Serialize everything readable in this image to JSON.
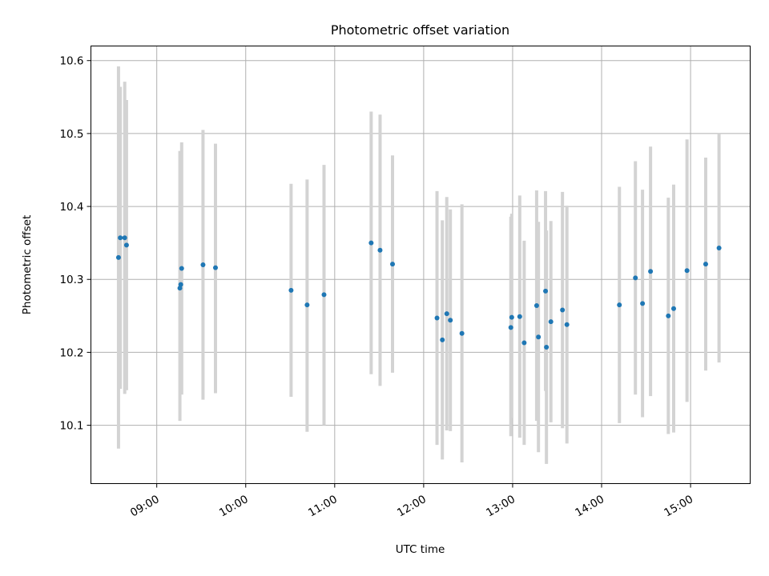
{
  "chart_data": {
    "type": "scatter",
    "title": "Photometric offset variation",
    "xlabel": "UTC time",
    "ylabel": "Photometric offset",
    "grid": true,
    "xlim_hours": [
      8.26,
      15.67
    ],
    "ylim": [
      10.02,
      10.62
    ],
    "x_ticks": [
      {
        "hour": 9,
        "label": "09:00"
      },
      {
        "hour": 10,
        "label": "10:00"
      },
      {
        "hour": 11,
        "label": "11:00"
      },
      {
        "hour": 12,
        "label": "12:00"
      },
      {
        "hour": 13,
        "label": "13:00"
      },
      {
        "hour": 14,
        "label": "14:00"
      },
      {
        "hour": 15,
        "label": "15:00"
      }
    ],
    "y_ticks": [
      {
        "value": 10.1,
        "label": "10.1"
      },
      {
        "value": 10.2,
        "label": "10.2"
      },
      {
        "value": 10.3,
        "label": "10.3"
      },
      {
        "value": 10.4,
        "label": "10.4"
      },
      {
        "value": 10.5,
        "label": "10.5"
      },
      {
        "value": 10.6,
        "label": "10.6"
      }
    ],
    "colors": {
      "point": "#1f77b4",
      "errorbar": "#d3d3d3"
    },
    "series": [
      {
        "name": "offset",
        "points": [
          {
            "t": 8.57,
            "y": 10.33,
            "lo": 10.068,
            "hi": 10.592
          },
          {
            "t": 8.59,
            "y": 10.357,
            "lo": 10.15,
            "hi": 10.564
          },
          {
            "t": 8.64,
            "y": 10.357,
            "lo": 10.143,
            "hi": 10.571
          },
          {
            "t": 8.66,
            "y": 10.347,
            "lo": 10.148,
            "hi": 10.546
          },
          {
            "t": 9.26,
            "y": 10.288,
            "lo": 10.106,
            "hi": 10.476
          },
          {
            "t": 9.27,
            "y": 10.293,
            "lo": 10.19,
            "hi": 10.4
          },
          {
            "t": 9.28,
            "y": 10.315,
            "lo": 10.142,
            "hi": 10.488
          },
          {
            "t": 9.52,
            "y": 10.32,
            "lo": 10.135,
            "hi": 10.505
          },
          {
            "t": 9.66,
            "y": 10.316,
            "lo": 10.144,
            "hi": 10.486
          },
          {
            "t": 10.51,
            "y": 10.285,
            "lo": 10.139,
            "hi": 10.431
          },
          {
            "t": 10.69,
            "y": 10.265,
            "lo": 10.091,
            "hi": 10.437
          },
          {
            "t": 10.88,
            "y": 10.279,
            "lo": 10.1,
            "hi": 10.457
          },
          {
            "t": 11.41,
            "y": 10.35,
            "lo": 10.17,
            "hi": 10.53
          },
          {
            "t": 11.51,
            "y": 10.34,
            "lo": 10.154,
            "hi": 10.526
          },
          {
            "t": 11.65,
            "y": 10.321,
            "lo": 10.172,
            "hi": 10.47
          },
          {
            "t": 12.15,
            "y": 10.247,
            "lo": 10.073,
            "hi": 10.421
          },
          {
            "t": 12.21,
            "y": 10.217,
            "lo": 10.053,
            "hi": 10.381
          },
          {
            "t": 12.26,
            "y": 10.253,
            "lo": 10.093,
            "hi": 10.413
          },
          {
            "t": 12.3,
            "y": 10.244,
            "lo": 10.092,
            "hi": 10.396
          },
          {
            "t": 12.43,
            "y": 10.226,
            "lo": 10.049,
            "hi": 10.403
          },
          {
            "t": 12.98,
            "y": 10.234,
            "lo": 10.085,
            "hi": 10.386
          },
          {
            "t": 12.99,
            "y": 10.248,
            "lo": 10.11,
            "hi": 10.39
          },
          {
            "t": 13.08,
            "y": 10.249,
            "lo": 10.083,
            "hi": 10.415
          },
          {
            "t": 13.13,
            "y": 10.213,
            "lo": 10.073,
            "hi": 10.353
          },
          {
            "t": 13.27,
            "y": 10.264,
            "lo": 10.106,
            "hi": 10.422
          },
          {
            "t": 13.29,
            "y": 10.221,
            "lo": 10.063,
            "hi": 10.379
          },
          {
            "t": 13.37,
            "y": 10.284,
            "lo": 10.147,
            "hi": 10.421
          },
          {
            "t": 13.38,
            "y": 10.207,
            "lo": 10.047,
            "hi": 10.367
          },
          {
            "t": 13.43,
            "y": 10.242,
            "lo": 10.104,
            "hi": 10.38
          },
          {
            "t": 13.56,
            "y": 10.258,
            "lo": 10.096,
            "hi": 10.42
          },
          {
            "t": 13.61,
            "y": 10.238,
            "lo": 10.075,
            "hi": 10.401
          },
          {
            "t": 14.2,
            "y": 10.265,
            "lo": 10.103,
            "hi": 10.427
          },
          {
            "t": 14.38,
            "y": 10.302,
            "lo": 10.142,
            "hi": 10.462
          },
          {
            "t": 14.46,
            "y": 10.267,
            "lo": 10.111,
            "hi": 10.423
          },
          {
            "t": 14.55,
            "y": 10.311,
            "lo": 10.14,
            "hi": 10.482
          },
          {
            "t": 14.75,
            "y": 10.25,
            "lo": 10.088,
            "hi": 10.412
          },
          {
            "t": 14.81,
            "y": 10.26,
            "lo": 10.09,
            "hi": 10.43
          },
          {
            "t": 14.96,
            "y": 10.312,
            "lo": 10.132,
            "hi": 10.492
          },
          {
            "t": 15.17,
            "y": 10.321,
            "lo": 10.175,
            "hi": 10.467
          },
          {
            "t": 15.32,
            "y": 10.343,
            "lo": 10.186,
            "hi": 10.5
          }
        ]
      }
    ]
  }
}
